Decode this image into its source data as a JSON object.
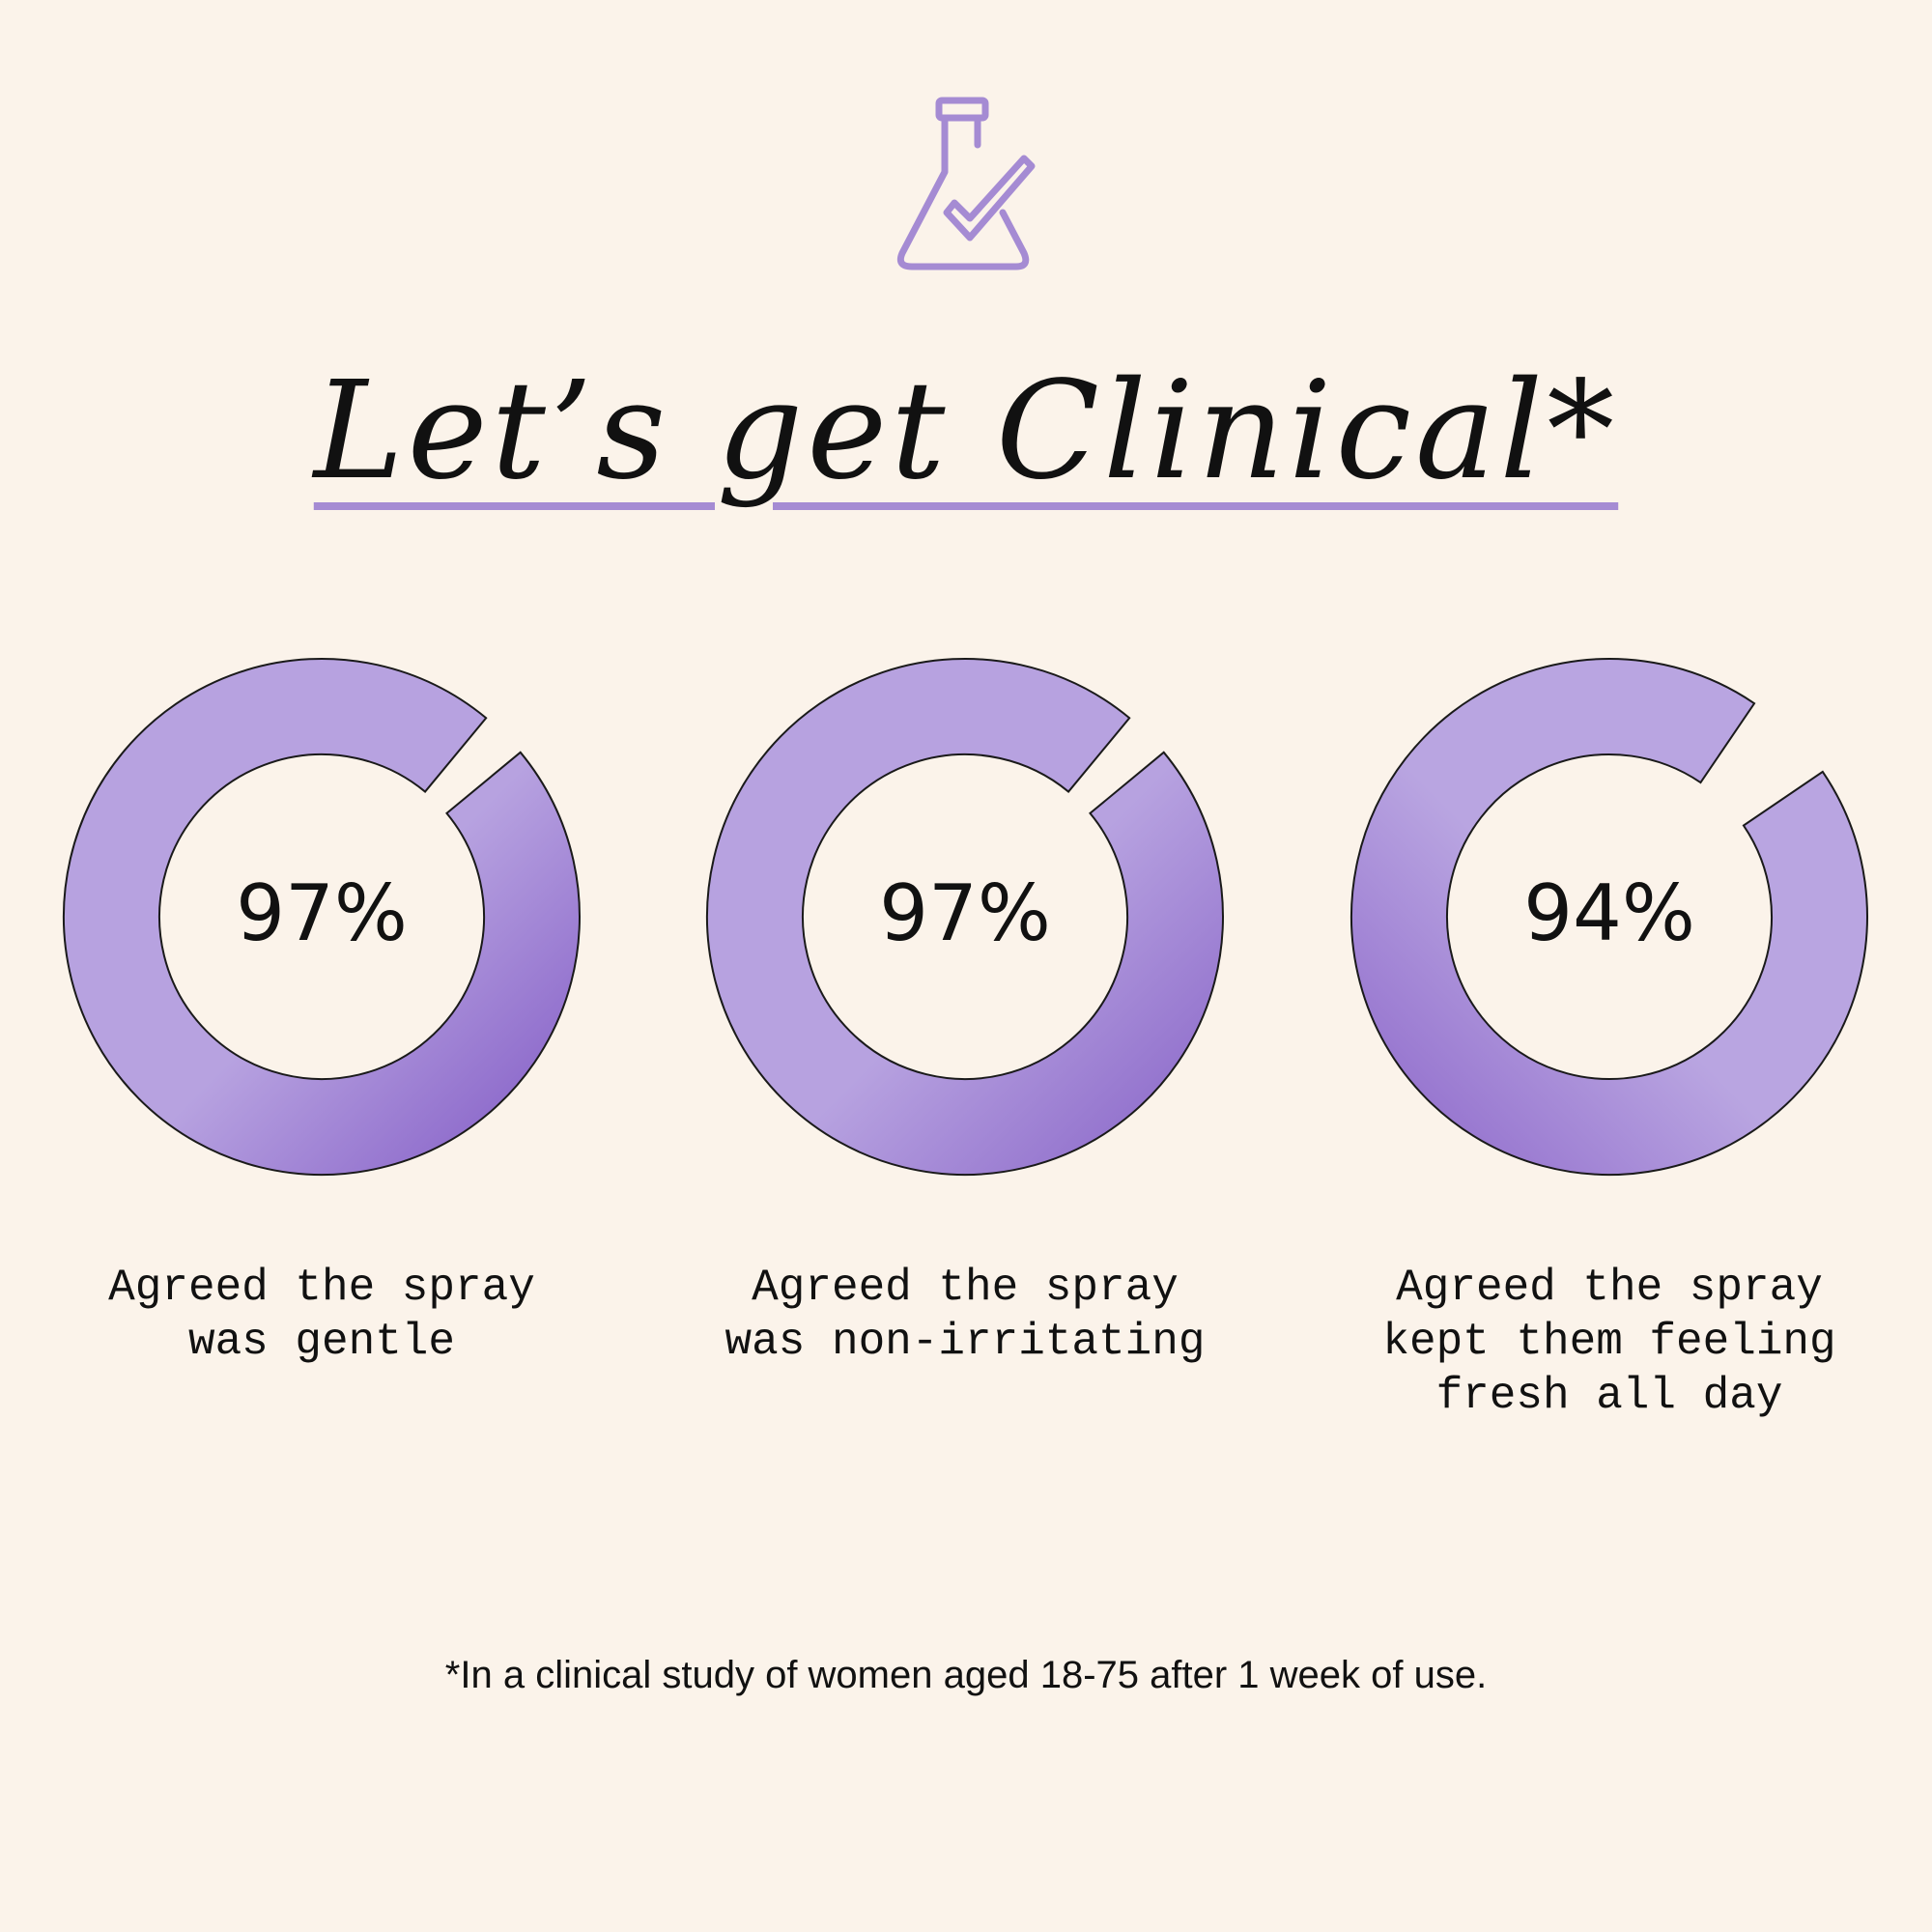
{
  "title": "Let’s get Clinical*",
  "footnote": "*In a clinical study of women aged 18-75 after 1 week of use.",
  "chart_data": [
    {
      "type": "donut",
      "values": [
        97
      ],
      "value_labels": [
        "97%"
      ],
      "ylim": [
        0,
        100
      ],
      "colors": [
        "#b7a2e0",
        "#7f57c4"
      ],
      "caption": [
        "Agreed the spray",
        "was gentle"
      ]
    },
    {
      "type": "donut",
      "values": [
        97
      ],
      "value_labels": [
        "97%"
      ],
      "ylim": [
        0,
        100
      ],
      "colors": [
        "#b7a2e0",
        "#8560c6"
      ],
      "caption": [
        "Agreed the spray",
        "was non-irritating"
      ]
    },
    {
      "type": "donut",
      "values": [
        94
      ],
      "value_labels": [
        "94%"
      ],
      "ylim": [
        0,
        100
      ],
      "colors": [
        "#b9a5e1",
        "#8962c8"
      ],
      "caption": [
        "Agreed the spray",
        "kept them feeling",
        "fresh all day"
      ]
    }
  ]
}
